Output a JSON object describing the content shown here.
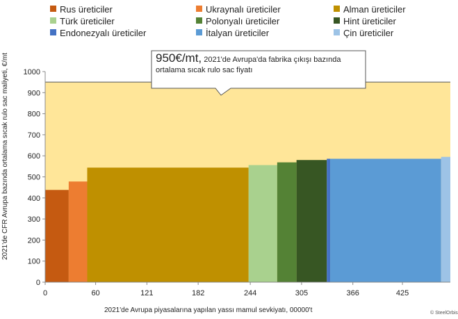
{
  "legend": [
    {
      "label": "Rus üreticiler",
      "color": "#c55a11"
    },
    {
      "label": "Ukraynalı üreticiler",
      "color": "#ed7d31"
    },
    {
      "label": "Alman üreticiler",
      "color": "#bf9000"
    },
    {
      "label": "Türk üreticiler",
      "color": "#a9d18e"
    },
    {
      "label": "Polonyalı üreticiler",
      "color": "#548235"
    },
    {
      "label": "Hint üreticiler",
      "color": "#375623"
    },
    {
      "label": "Endonezyalı üreticiler",
      "color": "#4472c4"
    },
    {
      "label": "İtalyan üreticiler",
      "color": "#5b9bd5"
    },
    {
      "label": "Çin üreticiler",
      "color": "#9dc3e6"
    }
  ],
  "callout": {
    "big": "950€/mt,",
    "rest": " 2021'de Avrupa'da fabrika çıkışı bazında ortalama sıcak rulo sac fiyatı"
  },
  "credit": "© SteelOrbis",
  "chart_data": {
    "type": "bar",
    "xlabel": "2021'de Avrupa piyasalarına yapılan yassı mamul sevkiyatı, 00000't",
    "ylabel": "2021'de CFR Avrupa bazında ortalama sıcak rulo sac maliyeti, €/mt",
    "x_ticks": [
      "0",
      "60",
      "121",
      "182",
      "244",
      "305",
      "366",
      "425"
    ],
    "x_tick_values": [
      0,
      60,
      121,
      182,
      244,
      305,
      366,
      425
    ],
    "y_ticks": [
      "0",
      "100",
      "200",
      "300",
      "400",
      "500",
      "600",
      "700",
      "800",
      "900",
      "1000"
    ],
    "xlim": [
      0,
      482
    ],
    "ylim": [
      0,
      1000
    ],
    "grid": false,
    "reference_line": {
      "value": 950,
      "fill_color": "#ffe699"
    },
    "segments": [
      {
        "name": "Rus üreticiler",
        "x0": 0,
        "x1": 28,
        "value": 438,
        "color": "#c55a11"
      },
      {
        "name": "Ukraynalı üreticiler",
        "x0": 28,
        "x1": 50,
        "value": 478,
        "color": "#ed7d31"
      },
      {
        "name": "Alman üreticiler",
        "x0": 50,
        "x1": 242,
        "value": 544,
        "color": "#bf9000"
      },
      {
        "name": "Türk üreticiler",
        "x0": 242,
        "x1": 276,
        "value": 556,
        "color": "#a9d18e"
      },
      {
        "name": "Polonyalı üreticiler",
        "x0": 276,
        "x1": 299,
        "value": 569,
        "color": "#548235"
      },
      {
        "name": "Hint üreticiler",
        "x0": 299,
        "x1": 335,
        "value": 580,
        "color": "#375623"
      },
      {
        "name": "Endonezyalı üreticiler",
        "x0": 335,
        "x1": 339,
        "value": 586,
        "color": "#4472c4"
      },
      {
        "name": "İtalyan üreticiler",
        "x0": 339,
        "x1": 471,
        "value": 586,
        "color": "#5b9bd5"
      },
      {
        "name": "Çin üreticiler",
        "x0": 471,
        "x1": 482,
        "value": 595,
        "color": "#9dc3e6"
      }
    ]
  }
}
